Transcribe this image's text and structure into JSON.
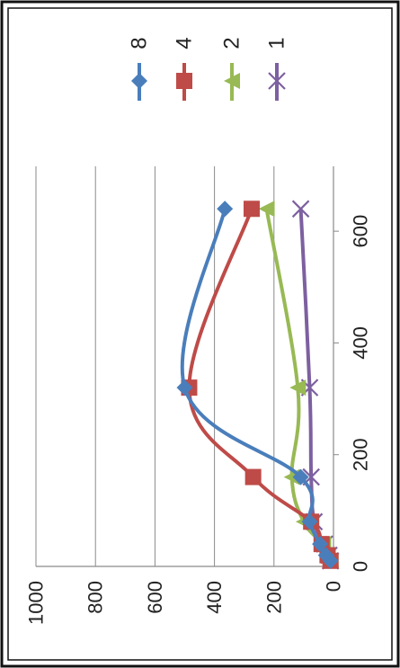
{
  "chart_data": {
    "type": "line",
    "orientation": "rotated-90-clockwise",
    "title": "",
    "xlabel": "",
    "ylabel": "",
    "xlim": [
      0,
      700
    ],
    "ylim": [
      0,
      1000
    ],
    "x_ticks": [
      0,
      200,
      400,
      600
    ],
    "y_ticks": [
      0,
      200,
      400,
      600,
      800,
      1000
    ],
    "grid": "horizontal-major",
    "smoothed": true,
    "legend_position": "top",
    "series": [
      {
        "name": "8",
        "color": "#4a7ebb",
        "marker": "diamond",
        "x": [
          10,
          20,
          40,
          80,
          160,
          320,
          640
        ],
        "y": [
          10,
          25,
          45,
          80,
          110,
          500,
          365
        ]
      },
      {
        "name": "4",
        "color": "#be4b48",
        "marker": "square",
        "x": [
          10,
          20,
          40,
          80,
          160,
          320,
          640
        ],
        "y": [
          10,
          20,
          40,
          75,
          270,
          485,
          275
        ]
      },
      {
        "name": "2",
        "color": "#98b954",
        "marker": "triangle",
        "x": [
          10,
          20,
          40,
          80,
          160,
          320,
          640
        ],
        "y": [
          10,
          20,
          35,
          100,
          140,
          120,
          225
        ]
      },
      {
        "name": "1",
        "color": "#7d60a0",
        "marker": "x",
        "x": [
          10,
          20,
          40,
          80,
          160,
          320,
          640
        ],
        "y": [
          10,
          15,
          30,
          65,
          75,
          80,
          110
        ]
      }
    ]
  }
}
